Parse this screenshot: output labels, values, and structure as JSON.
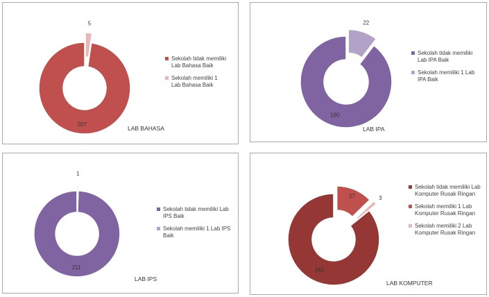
{
  "chart_data": [
    {
      "type": "pie",
      "title": "LAB BAHASA",
      "categories": [
        "Sekolah tidak memiliki Lab Bahasa Baik",
        "Sekolah memiliki 1 Lab Bahasa Baik"
      ],
      "values": [
        207,
        5
      ],
      "labels": [
        "207",
        "5"
      ],
      "colors": [
        "#c0504d",
        "#e6b9b8"
      ],
      "legend_position": "right"
    },
    {
      "type": "pie",
      "title": "LAB IPA",
      "categories": [
        "Sekolah tidak memiliki Lab IPA Baik",
        "Sekolah memiliki 1 Lab IPA Baik"
      ],
      "values": [
        190,
        22
      ],
      "labels": [
        "190",
        "22"
      ],
      "colors": [
        "#8064a2",
        "#b3a2c7"
      ],
      "legend_position": "right"
    },
    {
      "type": "pie",
      "title": "LAB IPS",
      "categories": [
        "Sekolah tidak memiliki Lab IPS Baik",
        "Sekolah memiliki 1 Lab IPS Baik"
      ],
      "values": [
        211,
        1
      ],
      "labels": [
        "211",
        "1"
      ],
      "colors": [
        "#8064a2",
        "#b3a2c7"
      ],
      "legend_position": "right"
    },
    {
      "type": "pie",
      "title": "LAB KOMPUTER",
      "categories": [
        "Sekolah tidak memiliki Lab Komputer Rusak Ringan",
        "Sekolah memiliki 1 Lab Komputer Rusak Ringan",
        "Sekolah memiliki 2 Lab Komputer Rusak Ringan"
      ],
      "values": [
        182,
        27,
        3
      ],
      "labels": [
        "182",
        "27",
        "3"
      ],
      "colors": [
        "#953735",
        "#c0504d",
        "#e6b9b8"
      ],
      "legend_position": "right"
    }
  ]
}
